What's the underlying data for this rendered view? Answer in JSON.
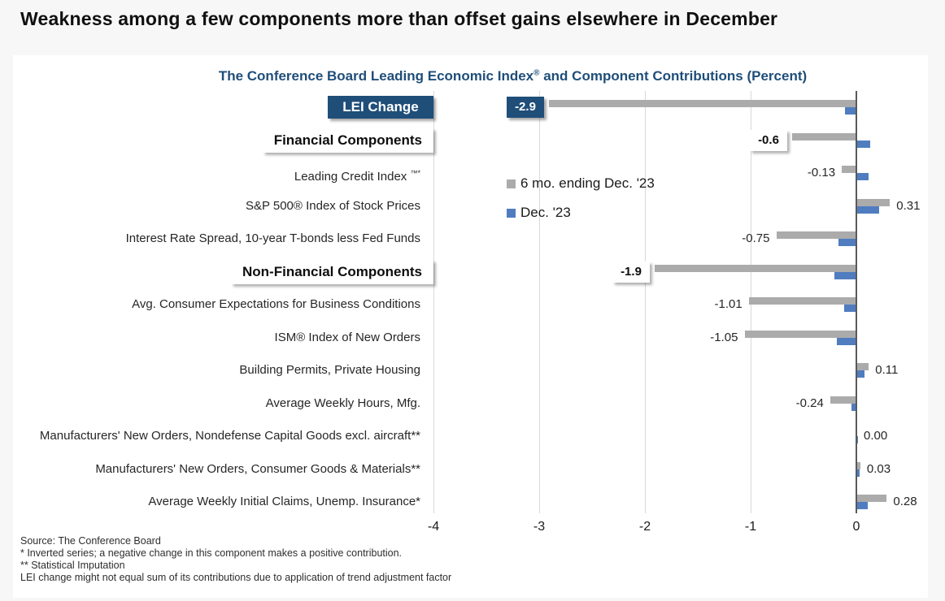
{
  "headline": "Weakness among a few components more than offset gains elsewhere in December",
  "chart_data": {
    "type": "bar",
    "orientation": "horizontal",
    "title": "The Conference Board Leading Economic Index® and Component Contributions (Percent)",
    "legend": [
      {
        "name": "6 mo. ending Dec. '23",
        "color": "#ABABAB",
        "series": "six_mo"
      },
      {
        "name": "Dec. '23",
        "color": "#4F7DBF",
        "series": "dec"
      }
    ],
    "legend_position": "inside-left-upper",
    "grid": true,
    "xlim": [
      -4,
      0.7
    ],
    "x_ticks": [
      "-4",
      "-3",
      "-2",
      "-1",
      "0"
    ],
    "x_tick_values": [
      -4,
      -3,
      -2,
      -1,
      0
    ],
    "rows": [
      {
        "label": "LEI Change",
        "label_style": "navy-box",
        "six_mo": -2.9,
        "dec": -0.1,
        "value_label": "-2.9",
        "value_style": "navy-box"
      },
      {
        "label": "Financial Components",
        "label_style": "white-box",
        "six_mo": -0.6,
        "dec": 0.12,
        "value_label": "-0.6",
        "value_style": "white-box"
      },
      {
        "label": "Leading Credit Index ™*",
        "label_style": "plain",
        "six_mo": -0.13,
        "dec": 0.11,
        "value_label": "-0.13",
        "value_style": "plain"
      },
      {
        "label": "S&P 500® Index of Stock Prices",
        "label_style": "plain",
        "six_mo": 0.31,
        "dec": 0.21,
        "value_label": "0.31",
        "value_style": "plain"
      },
      {
        "label": "Interest Rate Spread, 10-year T-bonds less Fed Funds",
        "label_style": "plain",
        "six_mo": -0.75,
        "dec": -0.16,
        "value_label": "-0.75",
        "value_style": "plain"
      },
      {
        "label": "Non-Financial Components",
        "label_style": "white-box",
        "six_mo": -1.9,
        "dec": -0.2,
        "value_label": "-1.9",
        "value_style": "white-box"
      },
      {
        "label": "Avg. Consumer Expectations for Business Conditions",
        "label_style": "plain",
        "six_mo": -1.01,
        "dec": -0.11,
        "value_label": "-1.01",
        "value_style": "plain"
      },
      {
        "label": "ISM® Index of New Orders",
        "label_style": "plain",
        "six_mo": -1.05,
        "dec": -0.18,
        "value_label": "-1.05",
        "value_style": "plain"
      },
      {
        "label": "Building Permits, Private Housing",
        "label_style": "plain",
        "six_mo": 0.11,
        "dec": 0.07,
        "value_label": "0.11",
        "value_style": "plain"
      },
      {
        "label": "Average Weekly Hours, Mfg.",
        "label_style": "plain",
        "six_mo": -0.24,
        "dec": -0.04,
        "value_label": "-0.24",
        "value_style": "plain"
      },
      {
        "label": "Manufacturers' New Orders, Nondefense Capital Goods excl. aircraft**",
        "label_style": "plain",
        "six_mo": 0.0,
        "dec": 0.01,
        "value_label": "0.00",
        "value_style": "plain"
      },
      {
        "label": "Manufacturers' New Orders, Consumer Goods & Materials**",
        "label_style": "plain",
        "six_mo": 0.03,
        "dec": 0.02,
        "value_label": "0.03",
        "value_style": "plain"
      },
      {
        "label": "Average Weekly Initial Claims, Unemp. Insurance*",
        "label_style": "plain",
        "six_mo": 0.28,
        "dec": 0.1,
        "value_label": "0.28",
        "value_style": "plain"
      }
    ]
  },
  "footnotes": [
    "Source: The Conference Board",
    "*  Inverted series; a negative change in this component makes a positive contribution.",
    "**  Statistical Imputation",
    "LEI change might not equal sum of its contributions due to application of trend adjustment factor"
  ],
  "colors": {
    "bar_6mo": "#ABABAB",
    "bar_dec": "#4F7DBF",
    "navy": "#1F4E79",
    "title_text": "#1F4E79",
    "gridline": "#d9d9d9",
    "zero_axis": "#595959",
    "panel_bg": "#ffffff",
    "page_bg": "#f7f7f8"
  }
}
